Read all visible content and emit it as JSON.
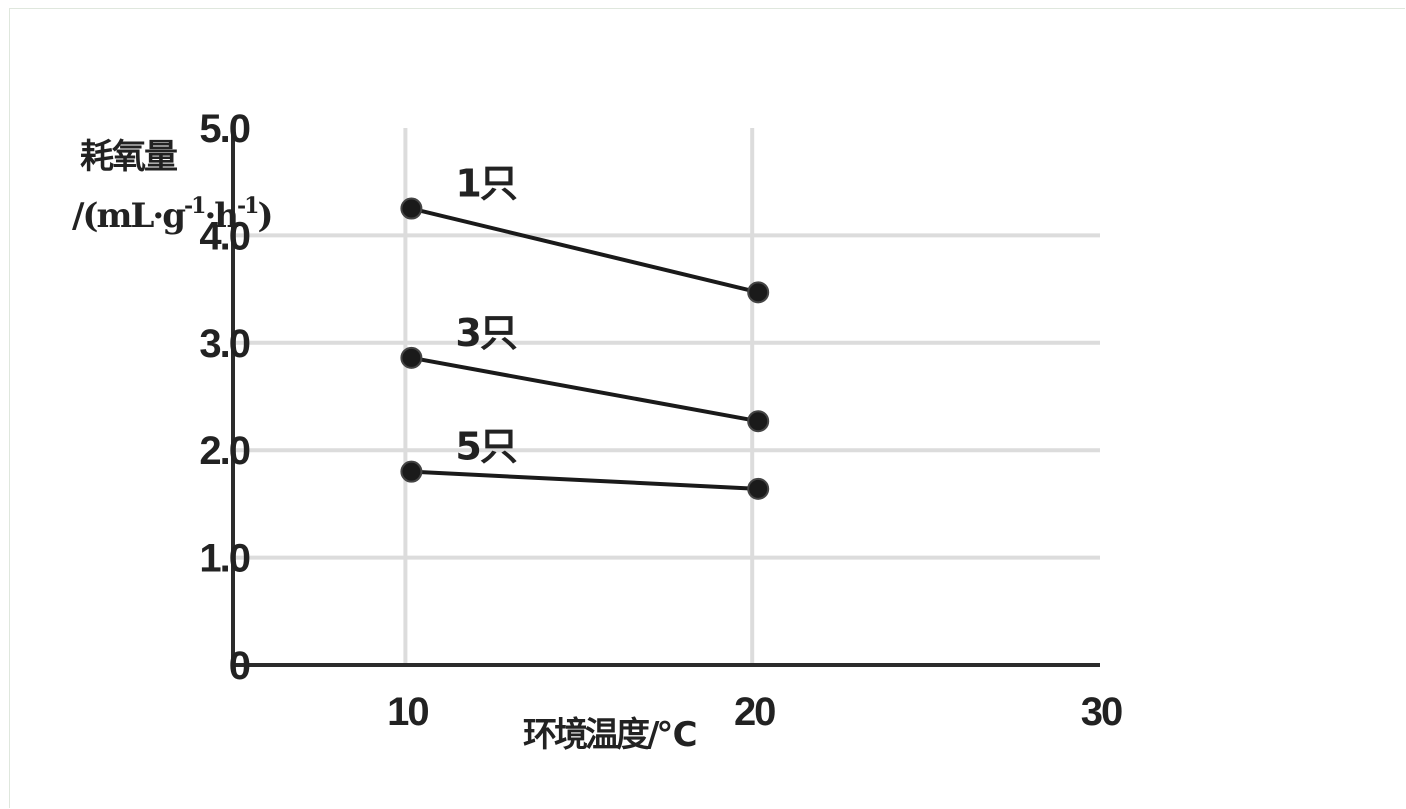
{
  "chart_data": {
    "type": "line",
    "ylabel": {
      "line1": "耗氧量",
      "unit_prefix": "/(mL·g",
      "sup1": "-1",
      "dot": "·h",
      "sup2": "-1",
      "suffix": ")"
    },
    "xlabel": "环境温度/℃",
    "x_ticks": [
      "10",
      "20",
      "30"
    ],
    "y_ticks": [
      "0",
      "1.0",
      "2.0",
      "3.0",
      "4.0",
      "5.0"
    ],
    "xlim": [
      5,
      30
    ],
    "ylim": [
      0,
      5
    ],
    "grid": true,
    "x": [
      10,
      20
    ],
    "series": [
      {
        "name": "1只",
        "values": [
          4.25,
          3.47
        ]
      },
      {
        "name": "3只",
        "values": [
          2.86,
          2.27
        ]
      },
      {
        "name": "5只",
        "values": [
          1.8,
          1.64
        ]
      }
    ],
    "colors": {
      "axis": "#2b2b2b",
      "grid": "#dcdcdc",
      "line": "#1a1a1a"
    }
  }
}
